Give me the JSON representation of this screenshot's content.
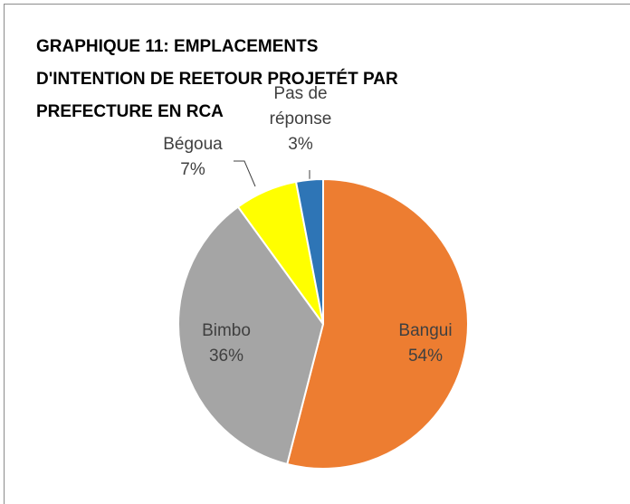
{
  "chart_data": {
    "type": "pie",
    "title": [
      "GRAPHIQUE 11: EMPLACEMENTS",
      "D'INTENTION DE REETOUR PROJETÉT PAR",
      "PREFECTURE EN RCA"
    ],
    "categories": [
      "Bangui",
      "Bimbo",
      "Bégoua",
      "Pas de réponse"
    ],
    "values": [
      54,
      36,
      7,
      3
    ],
    "value_labels": [
      "54%",
      "36%",
      "7%",
      "3%"
    ],
    "colors": [
      "#ed7d31",
      "#a5a5a5",
      "#ffff00",
      "#2e75b6"
    ]
  }
}
